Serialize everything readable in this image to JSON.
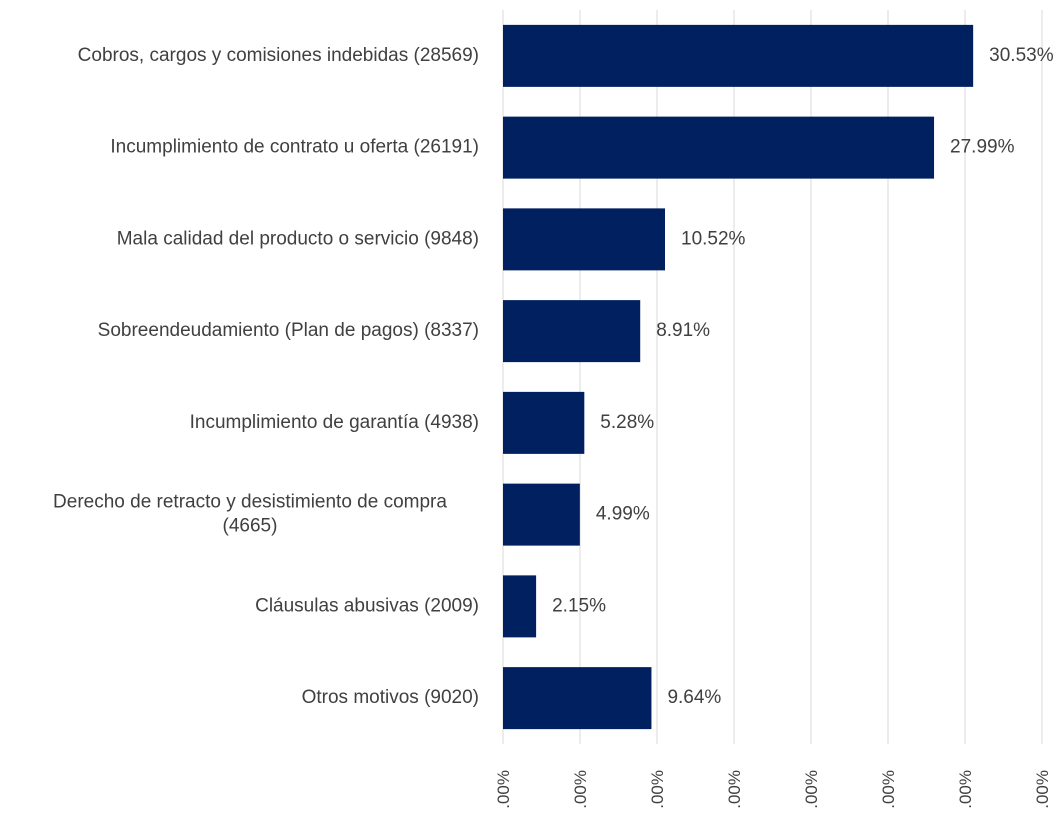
{
  "chart_data": {
    "type": "bar",
    "orientation": "horizontal",
    "categories": [
      [
        "Cobros, cargos y comisiones indebidas (28569)"
      ],
      [
        "Incumplimiento de contrato u oferta (26191)"
      ],
      [
        "Mala calidad del producto o servicio (9848)"
      ],
      [
        "Sobreendeudamiento (Plan de pagos) (8337)"
      ],
      [
        "Incumplimiento de garantía (4938)"
      ],
      [
        "Derecho de retracto y desistimiento de compra",
        "(4665)"
      ],
      [
        "Cláusulas abusivas (2009)"
      ],
      [
        "Otros motivos (9020)"
      ]
    ],
    "values": [
      30.53,
      27.99,
      10.52,
      8.91,
      5.28,
      4.99,
      2.15,
      9.64
    ],
    "data_labels": [
      "30.53%",
      "27.99%",
      "10.52%",
      "8.91%",
      "5.28%",
      "4.99%",
      "2.15%",
      "9.64%"
    ],
    "x_ticks": [
      0,
      5,
      10,
      15,
      20,
      25,
      30,
      35
    ],
    "x_tick_labels": [
      ".00%",
      ".00%",
      ".00%",
      ".00%",
      ".00%",
      ".00%",
      ".00%",
      ".00%"
    ],
    "xlim": [
      0,
      35
    ],
    "bar_color": "#002060",
    "grid": true,
    "legend": "none"
  }
}
